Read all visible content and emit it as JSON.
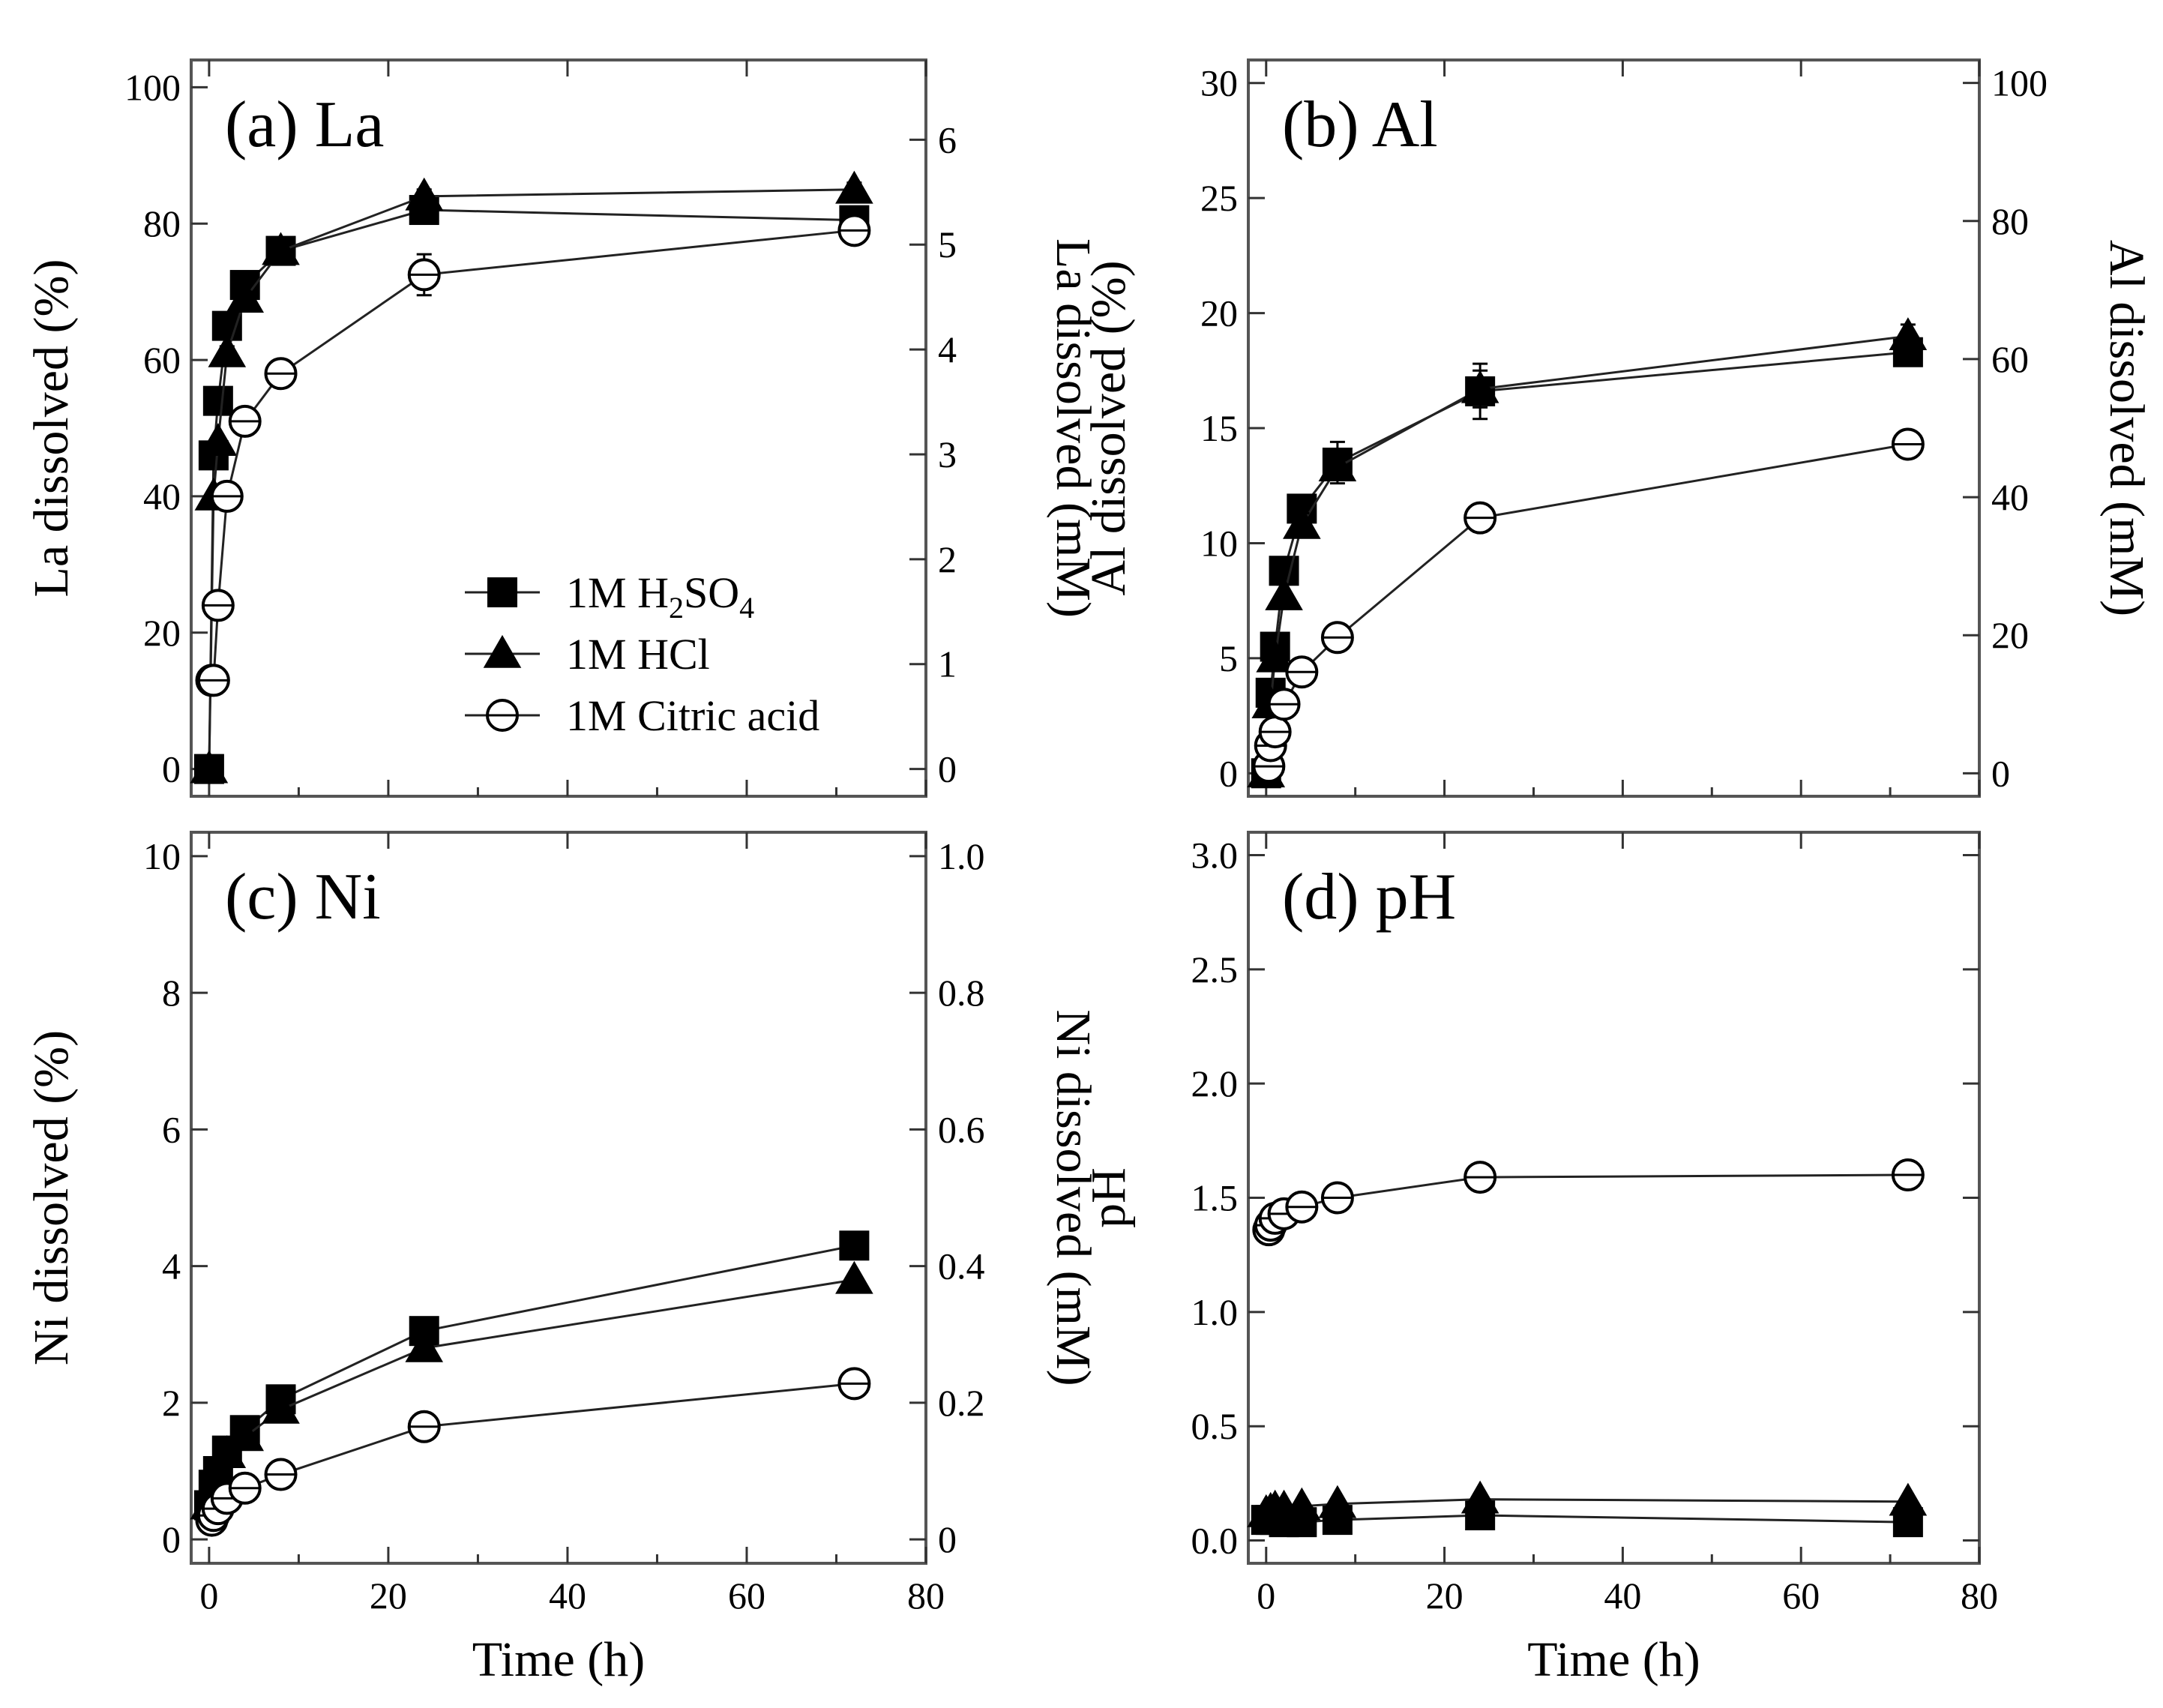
{
  "chart_data": [
    {
      "type": "line",
      "title": "(a) La",
      "xlabel": "Time (h)",
      "ylabel": "La dissolved (%)",
      "y2label": "La dissolved (mM)",
      "xlim": [
        -2,
        80
      ],
      "ylim": [
        -4,
        104
      ],
      "y2lim": [
        -0.26,
        6.76
      ],
      "xticks": [
        0,
        20,
        40,
        60,
        80
      ],
      "yticks": [
        0,
        20,
        40,
        60,
        80,
        100
      ],
      "y2ticks": [
        0,
        1,
        2,
        3,
        4,
        5,
        6
      ],
      "show_x_tick_labels": false,
      "legend": {
        "position": "lower-right",
        "entries": [
          {
            "label": "1M H",
            "sub1": "2",
            "mid": "SO",
            "sub2": "4"
          },
          {
            "label": "1M HCl"
          },
          {
            "label": "1M Citric acid"
          }
        ]
      },
      "series": [
        {
          "name": "1M H2SO4",
          "marker": "square",
          "x": [
            0,
            0.5,
            1,
            2,
            4,
            8,
            24,
            72
          ],
          "y": [
            0,
            46,
            54,
            65,
            71,
            76,
            82,
            80.5
          ],
          "yerr": [
            0,
            0,
            0,
            1,
            1,
            1,
            2,
            1
          ]
        },
        {
          "name": "1M HCl",
          "marker": "triangle",
          "x": [
            0,
            0.5,
            1,
            2,
            4,
            8,
            24,
            72
          ],
          "y": [
            0,
            40,
            48,
            61,
            69,
            76,
            84,
            85
          ],
          "yerr": [
            0,
            0,
            0,
            1,
            1,
            1,
            1,
            1
          ]
        },
        {
          "name": "1M Citric acid",
          "marker": "circle",
          "x": [
            0.3,
            0.5,
            1,
            2,
            4,
            8,
            24,
            72
          ],
          "y": [
            13,
            13,
            24,
            40,
            51,
            58,
            72.5,
            79
          ],
          "yerr": [
            1.5,
            1.5,
            2,
            2,
            2,
            2,
            3,
            2
          ]
        }
      ]
    },
    {
      "type": "line",
      "title": "(b) Al",
      "xlabel": "Time (h)",
      "ylabel": "Al dissolved (%)",
      "y2label": "Al dissolved (mM)",
      "xlim": [
        -2,
        80
      ],
      "ylim": [
        -1,
        31
      ],
      "y2lim": [
        -3.33,
        103.33
      ],
      "xticks": [
        0,
        20,
        40,
        60,
        80
      ],
      "yticks": [
        0,
        5,
        10,
        15,
        20,
        25,
        30
      ],
      "y2ticks": [
        0,
        20,
        40,
        60,
        80,
        100
      ],
      "show_x_tick_labels": false,
      "series": [
        {
          "name": "1M H2SO4",
          "marker": "square",
          "x": [
            0,
            0.5,
            1,
            2,
            4,
            8,
            24,
            72
          ],
          "y": [
            0,
            3.5,
            5.5,
            8.8,
            11.5,
            13.5,
            16.6,
            18.3
          ],
          "yerr": [
            0,
            0,
            0,
            0.5,
            0.5,
            0.9,
            1.2,
            0.5
          ]
        },
        {
          "name": "1M HCl",
          "marker": "triangle",
          "x": [
            0,
            0.5,
            1,
            2,
            4,
            8,
            24,
            72
          ],
          "y": [
            0,
            3,
            5,
            7.7,
            10.8,
            13.3,
            16.7,
            19
          ],
          "yerr": [
            0,
            0,
            0,
            0.5,
            0.5,
            0.5,
            0.8,
            0.5
          ]
        },
        {
          "name": "1M Citric acid",
          "marker": "circle",
          "x": [
            0.3,
            0.5,
            1,
            2,
            4,
            8,
            24,
            72
          ],
          "y": [
            0.3,
            1.2,
            1.8,
            3,
            4.4,
            5.9,
            11.1,
            14.3
          ],
          "yerr": [
            0.3,
            0.3,
            0.4,
            0.4,
            0.4,
            0.4,
            0.6,
            0.4
          ]
        }
      ]
    },
    {
      "type": "line",
      "title": "(c) Ni",
      "xlabel": "Time (h)",
      "ylabel": "Ni dissolved (%)",
      "y2label": "Ni dissolved (mM)",
      "xlim": [
        -2,
        80
      ],
      "ylim": [
        -0.35,
        10.35
      ],
      "y2lim": [
        -0.035,
        1.035
      ],
      "xticks": [
        0,
        20,
        40,
        60,
        80
      ],
      "yticks": [
        0,
        2,
        4,
        6,
        8,
        10
      ],
      "y2ticks": [
        0,
        0.2,
        0.4,
        0.6,
        0.8,
        1.0
      ],
      "y2ticklabels": [
        "0",
        "0.2",
        "0.4",
        "0.6",
        "0.8",
        "1.0"
      ],
      "show_x_tick_labels": true,
      "series": [
        {
          "name": "1M H2SO4",
          "marker": "square",
          "x": [
            0,
            0.5,
            1,
            2,
            4,
            8,
            24,
            72
          ],
          "y": [
            0.5,
            0.8,
            1,
            1.3,
            1.6,
            2.05,
            3.05,
            4.3
          ],
          "yerr": [
            0,
            0,
            0,
            0,
            0,
            0,
            0,
            0
          ]
        },
        {
          "name": "1M HCl",
          "marker": "triangle",
          "x": [
            0,
            0.5,
            1,
            2,
            4,
            8,
            24,
            72
          ],
          "y": [
            0.5,
            0.8,
            0.95,
            1.25,
            1.5,
            1.9,
            2.8,
            3.8
          ],
          "yerr": [
            0,
            0,
            0,
            0,
            0,
            0,
            0,
            0
          ]
        },
        {
          "name": "1M Citric acid",
          "marker": "circle",
          "x": [
            0.3,
            0.5,
            1,
            2,
            4,
            8,
            24,
            72
          ],
          "y": [
            0.28,
            0.35,
            0.45,
            0.6,
            0.75,
            0.95,
            1.65,
            2.28
          ],
          "yerr": [
            0,
            0,
            0,
            0,
            0,
            0,
            0,
            0
          ]
        }
      ]
    },
    {
      "type": "line",
      "title": "(d) pH",
      "xlabel": "Time (h)",
      "ylabel": "pH",
      "xlim": [
        -2,
        80
      ],
      "ylim": [
        -0.1,
        3.1
      ],
      "xticks": [
        0,
        20,
        40,
        60,
        80
      ],
      "yticks": [
        0,
        0.5,
        1.0,
        1.5,
        2.0,
        2.5,
        3.0
      ],
      "yticklabels": [
        "0.0",
        "0.5",
        "1.0",
        "1.5",
        "2.0",
        "2.5",
        "3.0"
      ],
      "show_x_tick_labels": true,
      "series": [
        {
          "name": "1M H2SO4",
          "marker": "square",
          "x": [
            0,
            0.5,
            1,
            2,
            4,
            8,
            24,
            72
          ],
          "y": [
            0.09,
            0.09,
            0.09,
            0.08,
            0.08,
            0.09,
            0.11,
            0.08
          ],
          "yerr": [
            0,
            0,
            0,
            0,
            0,
            0,
            0,
            0
          ]
        },
        {
          "name": "1M HCl",
          "marker": "triangle",
          "x": [
            0,
            0.5,
            1,
            2,
            4,
            8,
            24,
            72
          ],
          "y": [
            0.12,
            0.13,
            0.14,
            0.14,
            0.15,
            0.16,
            0.18,
            0.17
          ],
          "yerr": [
            0,
            0,
            0,
            0,
            0,
            0,
            0,
            0
          ]
        },
        {
          "name": "1M Citric acid",
          "marker": "circle",
          "x": [
            0.3,
            0.5,
            1,
            2,
            4,
            8,
            24,
            72
          ],
          "y": [
            1.36,
            1.38,
            1.41,
            1.43,
            1.46,
            1.5,
            1.59,
            1.6
          ],
          "yerr": [
            0,
            0,
            0,
            0,
            0,
            0,
            0,
            0
          ]
        }
      ]
    }
  ]
}
